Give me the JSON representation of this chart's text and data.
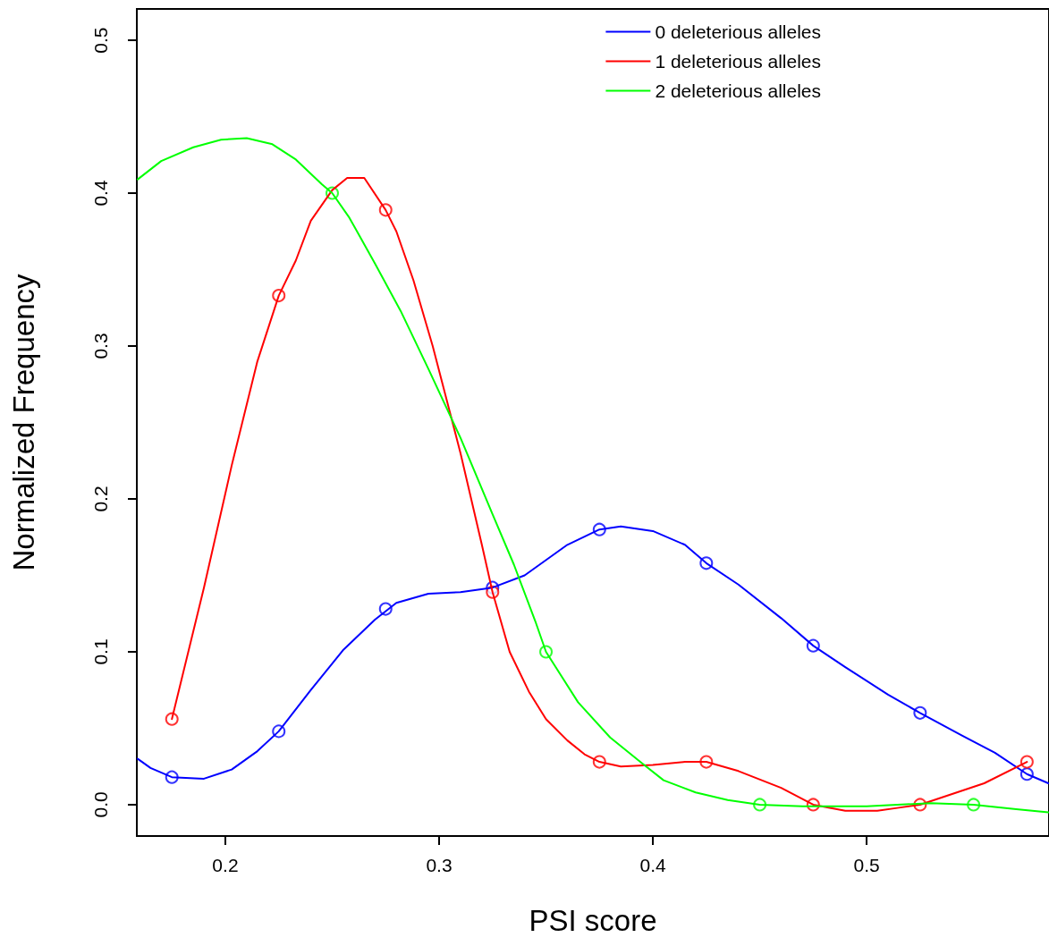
{
  "chart_data": {
    "type": "line",
    "xlabel": "PSI score",
    "ylabel": "Normalized Frequency",
    "xlim": [
      0.1586,
      0.5853
    ],
    "xticks": [
      0.2,
      0.3,
      0.4,
      0.5
    ],
    "ylim": [
      -0.0205,
      0.5205
    ],
    "yticks": [
      {
        "value": 0,
        "label": "0.0"
      },
      {
        "value": 0.1,
        "label": "0.1"
      },
      {
        "value": 0.2,
        "label": "0.2"
      },
      {
        "value": 0.3,
        "label": "0.3"
      },
      {
        "value": 0.4,
        "label": "0.4"
      },
      {
        "value": 0.5,
        "label": "0.5"
      }
    ],
    "grid": false,
    "legend": "top right",
    "series": [
      {
        "name": "0 deleterious alleles",
        "marker": "none",
        "color": "#0000ff",
        "x": [
          0.159,
          0.165,
          0.175,
          0.19,
          0.203,
          0.215,
          0.225,
          0.24,
          0.255,
          0.27,
          0.28,
          0.295,
          0.31,
          0.325,
          0.34,
          0.36,
          0.375,
          0.385,
          0.4,
          0.415,
          0.425,
          0.44,
          0.46,
          0.475,
          0.49,
          0.51,
          0.525,
          0.545,
          0.56,
          0.575,
          0.585
        ],
        "values": [
          0.03,
          0.024,
          0.018,
          0.017,
          0.023,
          0.035,
          0.048,
          0.075,
          0.101,
          0.121,
          0.132,
          0.138,
          0.139,
          0.142,
          0.15,
          0.17,
          0.18,
          0.182,
          0.179,
          0.17,
          0.158,
          0.144,
          0.122,
          0.104,
          0.09,
          0.072,
          0.06,
          0.045,
          0.034,
          0.02,
          0.014
        ]
      },
      {
        "name": "1 deleterious alleles",
        "marker": "none",
        "color": "#ff0000",
        "x": [
          0.175,
          0.19,
          0.203,
          0.215,
          0.225,
          0.233,
          0.24,
          0.25,
          0.257,
          0.265,
          0.275,
          0.28,
          0.288,
          0.297,
          0.31,
          0.32,
          0.325,
          0.333,
          0.342,
          0.35,
          0.36,
          0.368,
          0.375,
          0.385,
          0.4,
          0.415,
          0.425,
          0.44,
          0.46,
          0.475,
          0.49,
          0.505,
          0.515,
          0.525,
          0.54,
          0.555,
          0.575
        ],
        "values": [
          0.056,
          0.142,
          0.222,
          0.29,
          0.333,
          0.356,
          0.382,
          0.402,
          0.41,
          0.41,
          0.389,
          0.375,
          0.343,
          0.3,
          0.23,
          0.17,
          0.139,
          0.1,
          0.074,
          0.056,
          0.042,
          0.033,
          0.028,
          0.025,
          0.026,
          0.028,
          0.028,
          0.022,
          0.011,
          0,
          -0.004,
          -0.004,
          -0.002,
          0,
          0.007,
          0.014,
          0.028
        ]
      },
      {
        "name": "2 deleterious alleles",
        "marker": "none",
        "color": "#00ff00",
        "x": [
          0.159,
          0.17,
          0.185,
          0.198,
          0.21,
          0.222,
          0.233,
          0.245,
          0.25,
          0.258,
          0.27,
          0.282,
          0.295,
          0.31,
          0.325,
          0.335,
          0.345,
          0.35,
          0.365,
          0.38,
          0.395,
          0.405,
          0.42,
          0.435,
          0.45,
          0.47,
          0.5,
          0.53,
          0.55,
          0.57,
          0.585
        ],
        "values": [
          0.409,
          0.421,
          0.43,
          0.435,
          0.436,
          0.432,
          0.422,
          0.406,
          0.4,
          0.384,
          0.354,
          0.323,
          0.285,
          0.24,
          0.19,
          0.157,
          0.12,
          0.1,
          0.067,
          0.044,
          0.027,
          0.016,
          0.008,
          0.003,
          0,
          -0.001,
          -0.001,
          0.001,
          0,
          -0.003,
          -0.005
        ]
      },
      {
        "type": "scatter",
        "marker": "circle",
        "color": "#0000ff",
        "x": [
          0.175,
          0.225,
          0.275,
          0.325,
          0.375,
          0.425,
          0.475,
          0.525,
          0.575
        ],
        "values": [
          0.018,
          0.048,
          0.128,
          0.142,
          0.18,
          0.158,
          0.104,
          0.06,
          0.02
        ]
      },
      {
        "type": "scatter",
        "marker": "circle",
        "color": "#ff0000",
        "x": [
          0.175,
          0.225,
          0.275,
          0.325,
          0.375,
          0.425,
          0.475,
          0.525,
          0.575
        ],
        "values": [
          0.056,
          0.333,
          0.389,
          0.139,
          0.028,
          0.028,
          0,
          0,
          0.028
        ]
      },
      {
        "type": "scatter",
        "marker": "circle",
        "color": "#00ff00",
        "x": [
          0.25,
          0.35,
          0.45,
          0.55
        ],
        "values": [
          0.4,
          0.1,
          0,
          0
        ]
      }
    ]
  }
}
